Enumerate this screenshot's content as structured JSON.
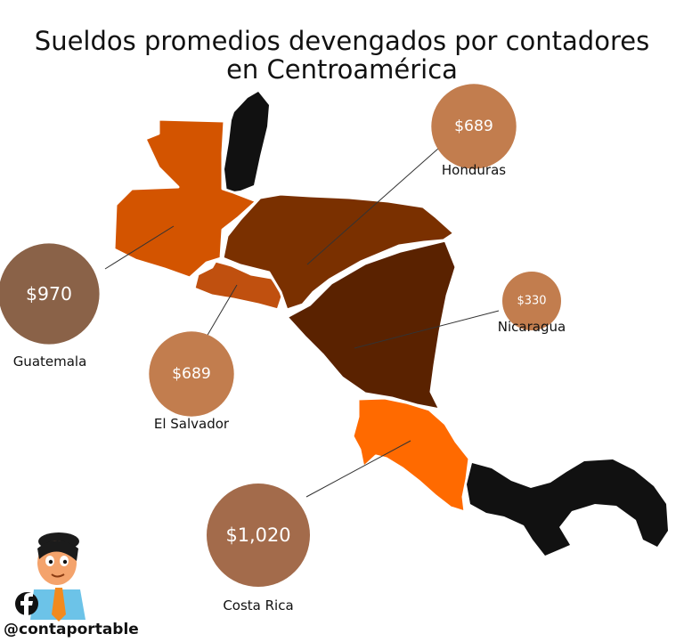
{
  "chart_data": {
    "type": "bubble-map",
    "title_lines": [
      "Sueldos promedios devengados por contadores",
      "en Centroamérica"
    ],
    "series": [
      {
        "country": "Guatemala",
        "value": 970,
        "label": "$970",
        "color": "#8a6248",
        "map_color": "#d35400"
      },
      {
        "country": "El Salvador",
        "value": 689,
        "label": "$689",
        "color": "#c27d4e",
        "map_color": "#c0500f"
      },
      {
        "country": "Honduras",
        "value": 689,
        "label": "$689",
        "color": "#c27d4e",
        "map_color": "#7a3000"
      },
      {
        "country": "Nicaragua",
        "value": 330,
        "label": "$330",
        "color": "#c27d4e",
        "map_color": "#5a2200"
      },
      {
        "country": "Costa Rica",
        "value": 1020,
        "label": "$1,020",
        "color": "#a36b4b",
        "map_color": "#ff6a00"
      }
    ],
    "other_regions_color": "#111111"
  },
  "branding": {
    "handle": "@contaportable",
    "icon": "facebook-icon",
    "mascot": "accountant-mascot-icon"
  }
}
